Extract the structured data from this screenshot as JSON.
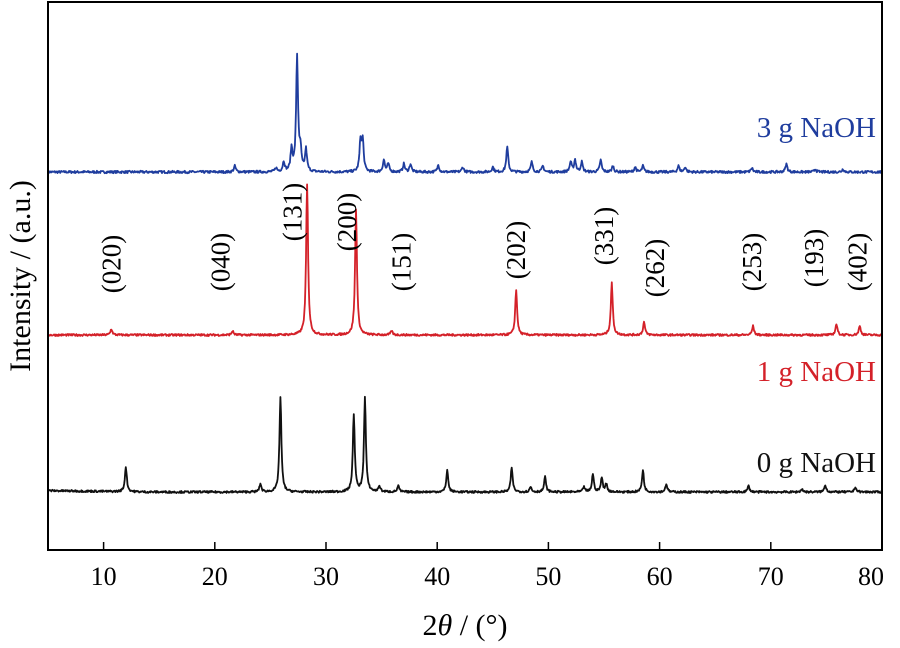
{
  "chart_data": {
    "type": "line",
    "xlabel": "2θ / (°)",
    "xlabel_prefix": "2",
    "xlabel_italic": "θ",
    "xlabel_suffix": " / (°)",
    "ylabel": "Intensity / (a.u.)",
    "xlim": [
      5,
      80
    ],
    "x_ticks": [
      10,
      20,
      30,
      40,
      50,
      60,
      70,
      80
    ],
    "y_ticks_labeled": false,
    "grid": false,
    "series": [
      {
        "name": "3 g NaOH",
        "color": "#1f3d9e",
        "peaks": [
          [
            21.8,
            6
          ],
          [
            25.5,
            4
          ],
          [
            26.2,
            10
          ],
          [
            26.9,
            22
          ],
          [
            27.4,
            115
          ],
          [
            27.7,
            20
          ],
          [
            28.2,
            22
          ],
          [
            33.1,
            30
          ],
          [
            33.3,
            30
          ],
          [
            35.2,
            12
          ],
          [
            35.6,
            8
          ],
          [
            37.0,
            8
          ],
          [
            37.6,
            8
          ],
          [
            40.1,
            7
          ],
          [
            42.3,
            5
          ],
          [
            45.0,
            5
          ],
          [
            46.3,
            25
          ],
          [
            48.5,
            10
          ],
          [
            49.5,
            6
          ],
          [
            52.0,
            10
          ],
          [
            52.4,
            12
          ],
          [
            53.0,
            10
          ],
          [
            54.7,
            12
          ],
          [
            55.8,
            6
          ],
          [
            57.8,
            5
          ],
          [
            58.5,
            6
          ],
          [
            61.7,
            6
          ],
          [
            62.3,
            5
          ],
          [
            68.3,
            4
          ],
          [
            71.4,
            8
          ],
          [
            74.0,
            3
          ],
          [
            76.5,
            3
          ]
        ]
      },
      {
        "name": "1 g NaOH",
        "color": "#d42129",
        "peaks": [
          [
            10.7,
            6
          ],
          [
            21.6,
            4
          ],
          [
            28.3,
            150
          ],
          [
            32.7,
            125
          ],
          [
            35.9,
            4
          ],
          [
            47.1,
            45
          ],
          [
            55.7,
            52
          ],
          [
            58.6,
            13
          ],
          [
            68.4,
            9
          ],
          [
            75.9,
            11
          ],
          [
            78.0,
            9
          ]
        ]
      },
      {
        "name": "0 g NaOH",
        "color": "#111111",
        "peaks": [
          [
            12.0,
            25
          ],
          [
            24.1,
            8
          ],
          [
            25.9,
            95
          ],
          [
            32.5,
            77
          ],
          [
            33.5,
            94
          ],
          [
            34.8,
            6
          ],
          [
            36.5,
            6
          ],
          [
            40.9,
            22
          ],
          [
            46.7,
            24
          ],
          [
            48.4,
            5
          ],
          [
            49.7,
            15
          ],
          [
            53.2,
            5
          ],
          [
            54.0,
            18
          ],
          [
            54.8,
            14
          ],
          [
            55.2,
            8
          ],
          [
            58.5,
            22
          ],
          [
            60.6,
            8
          ],
          [
            68.0,
            6
          ],
          [
            72.8,
            3
          ],
          [
            74.9,
            7
          ],
          [
            77.6,
            5
          ]
        ]
      }
    ],
    "peak_labels": [
      {
        "text": "(020)",
        "x": 10.7
      },
      {
        "text": "(040)",
        "x": 20.5
      },
      {
        "text": "(131)",
        "x": 27.0
      },
      {
        "text": "(200)",
        "x": 31.9
      },
      {
        "text": "(151)",
        "x": 36.8
      },
      {
        "text": "(202)",
        "x": 47.1
      },
      {
        "text": "(331)",
        "x": 55.0
      },
      {
        "text": "(262)",
        "x": 59.6
      },
      {
        "text": "(253)",
        "x": 68.3
      },
      {
        "text": "(193)",
        "x": 73.9
      },
      {
        "text": "(402)",
        "x": 77.8
      }
    ]
  }
}
